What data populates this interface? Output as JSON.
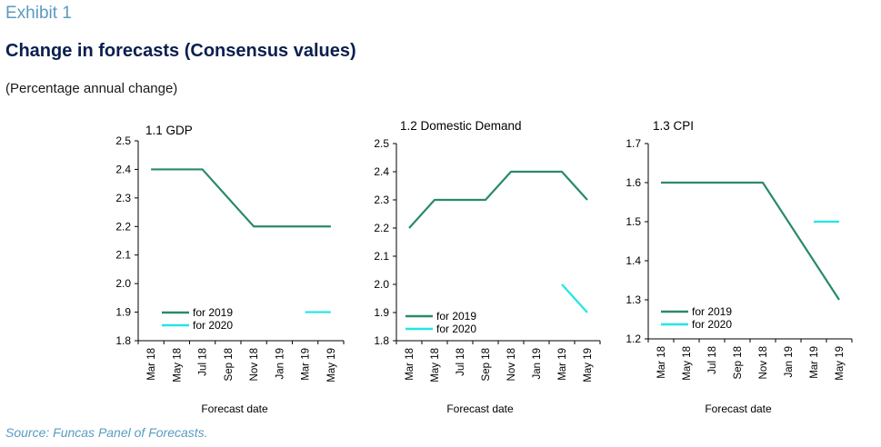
{
  "header": {
    "exhibit": "Exhibit 1",
    "title": "Change in forecasts (Consensus values)",
    "subtitle": "(Percentage annual change)"
  },
  "footer": {
    "source": "Source: Funcas Panel of Forecasts."
  },
  "colors": {
    "for_2019": "#2a8a6a",
    "for_2020": "#22e6e6"
  },
  "chart_data": [
    {
      "type": "line",
      "title": "1.1 GDP",
      "xlabel": "Forecast date",
      "ylabel": "",
      "categories": [
        "Mar 18",
        "May 18",
        "Jul 18",
        "Sep 18",
        "Nov 18",
        "Jan 19",
        "Mar 19",
        "May 19"
      ],
      "ylim": [
        1.8,
        2.5
      ],
      "yticks": [
        "2.5",
        "2.4",
        "2.3",
        "2.2",
        "2.1",
        "2.0",
        "1.9",
        "1.8"
      ],
      "series": [
        {
          "name": "for 2019",
          "values": [
            2.4,
            2.4,
            2.4,
            2.3,
            2.2,
            2.2,
            2.2,
            2.2
          ]
        },
        {
          "name": "for 2020",
          "values": [
            null,
            null,
            null,
            null,
            null,
            null,
            1.9,
            1.9
          ]
        }
      ],
      "legend": "bottom-left",
      "grid": false
    },
    {
      "type": "line",
      "title": "1.2 Domestic Demand",
      "xlabel": "Forecast date",
      "ylabel": "",
      "categories": [
        "Mar 18",
        "May 18",
        "Jul 18",
        "Sep 18",
        "Nov 18",
        "Jan 19",
        "Mar 19",
        "May 19"
      ],
      "ylim": [
        1.8,
        2.5
      ],
      "yticks": [
        "2.5",
        "2.4",
        "2.3",
        "2.2",
        "2.1",
        "2.0",
        "1.9",
        "1.8"
      ],
      "series": [
        {
          "name": "for 2019",
          "values": [
            2.2,
            2.3,
            2.3,
            2.3,
            2.4,
            2.4,
            2.4,
            2.3
          ]
        },
        {
          "name": "for 2020",
          "values": [
            null,
            null,
            null,
            null,
            null,
            null,
            2.0,
            1.9
          ]
        }
      ],
      "legend": "bottom-left",
      "grid": false
    },
    {
      "type": "line",
      "title": "1.3 CPI",
      "xlabel": "Forecast date",
      "ylabel": "",
      "categories": [
        "Mar 18",
        "May 18",
        "Jul 18",
        "Sep 18",
        "Nov 18",
        "Jan 19",
        "Mar 19",
        "May 19"
      ],
      "ylim": [
        1.2,
        1.7
      ],
      "yticks": [
        "1.7",
        "1.6",
        "1.5",
        "1.4",
        "1.3",
        "1.2"
      ],
      "series": [
        {
          "name": "for 2019",
          "values": [
            1.6,
            1.6,
            1.6,
            1.6,
            1.6,
            1.5,
            1.4,
            1.3
          ]
        },
        {
          "name": "for 2020",
          "values": [
            null,
            null,
            null,
            null,
            null,
            null,
            1.5,
            1.5
          ]
        }
      ],
      "legend": "bottom-left",
      "grid": false
    }
  ]
}
